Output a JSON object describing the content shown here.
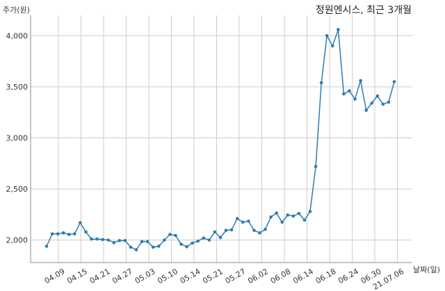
{
  "chart_data": {
    "type": "line",
    "title": "정원엔시스, 최근 3개월",
    "ylabel": "주가(원)",
    "xlabel": "날짜(일)",
    "ylim": [
      1780,
      4200
    ],
    "yticks": [
      2000,
      2500,
      3000,
      3500,
      4000
    ],
    "ytick_labels": [
      "2,000",
      "2,500",
      "3,000",
      "3,500",
      "4,000"
    ],
    "xticks": [
      "04.09",
      "04.15",
      "04.21",
      "04.27",
      "05.03",
      "05.10",
      "05.14",
      "05.21",
      "05.27",
      "06.02",
      "06.08",
      "06.14",
      "06.18",
      "06.24",
      "06.30",
      "21.07.06"
    ],
    "grid": true,
    "color": "#2f7bb0",
    "series": [
      {
        "values": [
          1940,
          2060,
          2060,
          2070,
          2055,
          2060,
          2170,
          2080,
          2010,
          2010,
          2005,
          2000,
          1975,
          1995,
          1995,
          1930,
          1905,
          1985,
          1985,
          1930,
          1940,
          2000,
          2055,
          2045,
          1960,
          1935,
          1970,
          1990,
          2020,
          2000,
          2080,
          2025,
          2095,
          2100,
          2210,
          2175,
          2185,
          2095,
          2070,
          2105,
          2225,
          2265,
          2175,
          2245,
          2235,
          2260,
          2195,
          2280,
          2720,
          3540,
          4000,
          3900,
          4060,
          3430,
          3460,
          3380,
          3560,
          3270,
          3340,
          3410,
          3330,
          3350,
          3550
        ]
      }
    ]
  }
}
